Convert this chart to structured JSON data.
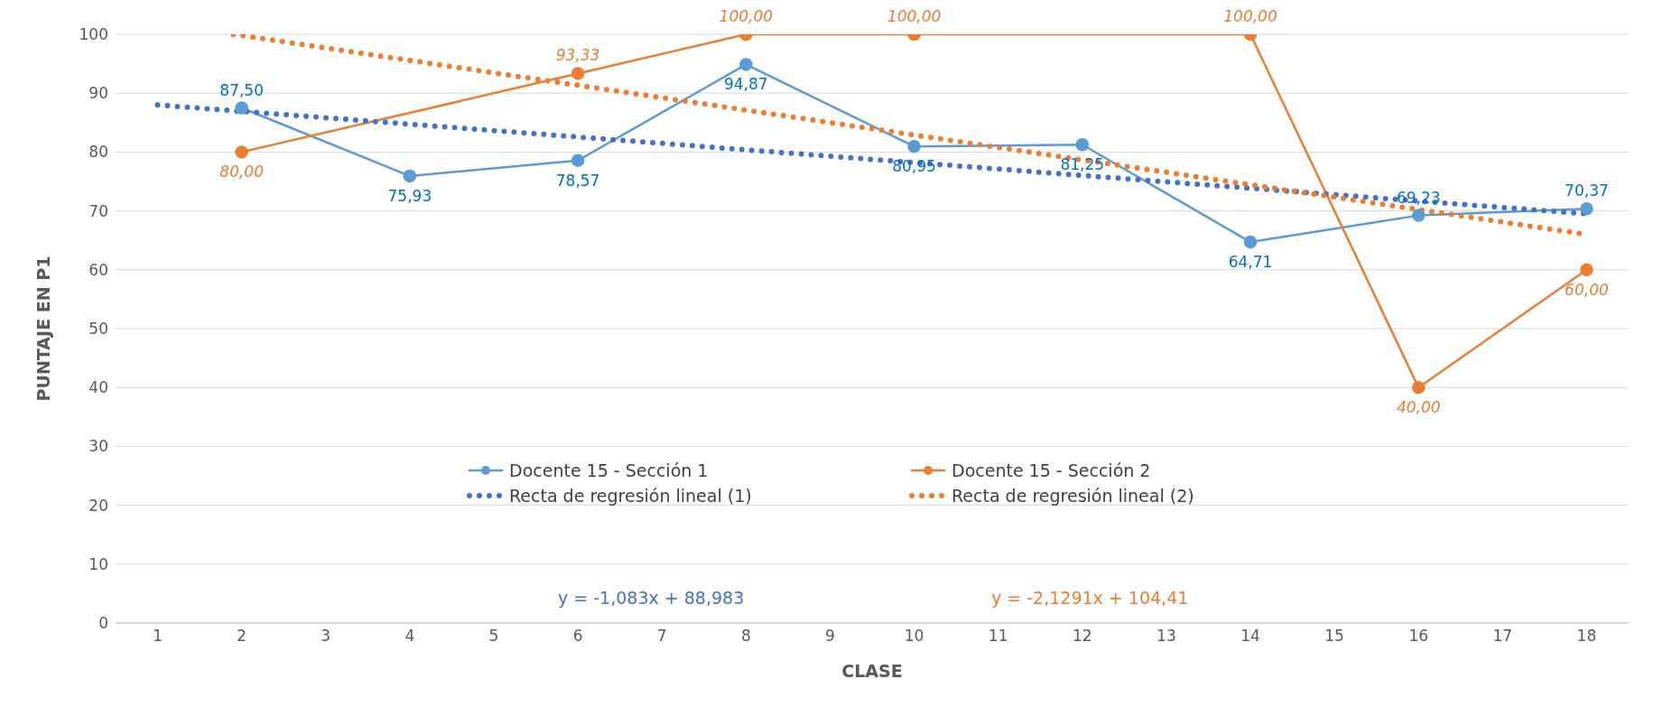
{
  "chart_data": {
    "type": "line",
    "xlabel": "CLASE",
    "ylabel": "PUNTAJE EN P1",
    "xlim": [
      0.5,
      18.5
    ],
    "xticks": [
      1,
      2,
      3,
      4,
      5,
      6,
      7,
      8,
      9,
      10,
      11,
      12,
      13,
      14,
      15,
      16,
      17,
      18
    ],
    "ylim": [
      0,
      100
    ],
    "yticks": [
      0,
      10,
      20,
      30,
      40,
      50,
      60,
      70,
      80,
      90,
      100
    ],
    "grid": "y",
    "legend": "bottom",
    "series": [
      {
        "name": "Docente 15 - Sección 1",
        "color": "#5b9bd5",
        "marker": "circle",
        "line_style": "solid",
        "x": [
          2,
          4,
          6,
          8,
          10,
          12,
          14,
          16,
          18
        ],
        "values": [
          87.5,
          75.93,
          78.57,
          94.87,
          80.95,
          81.25,
          64.71,
          69.23,
          70.37
        ],
        "value_labels": [
          "87,50",
          "75,93",
          "78,57",
          "94,87",
          "80,95",
          "81,25",
          "64,71",
          "69,23",
          "70,37"
        ]
      },
      {
        "name": "Docente 15 - Sección 2",
        "color": "#ed7d31",
        "marker": "circle",
        "line_style": "solid",
        "x": [
          2,
          6,
          8,
          10,
          14,
          16,
          18
        ],
        "values": [
          80,
          93.33,
          100,
          100,
          100,
          40,
          60
        ],
        "value_labels": [
          "80,00",
          "93,33",
          "100,00",
          "100,00",
          "100,00",
          "40,00",
          "60,00"
        ]
      },
      {
        "name": "Recta de regresión lineal (1)",
        "color": "#4472c4",
        "marker": "none",
        "line_style": "dotted",
        "x": [
          1,
          18
        ],
        "values": [
          88,
          69.5
        ]
      },
      {
        "name": "Recta de regresión lineal (2)",
        "color": "#ed7d31",
        "marker": "none",
        "line_style": "dotted",
        "x": [
          1.9,
          18
        ],
        "values": [
          100,
          66
        ]
      }
    ],
    "annotations": [
      "y = -1,083x + 88,983",
      "y = -2,1291x + 104,41"
    ]
  }
}
